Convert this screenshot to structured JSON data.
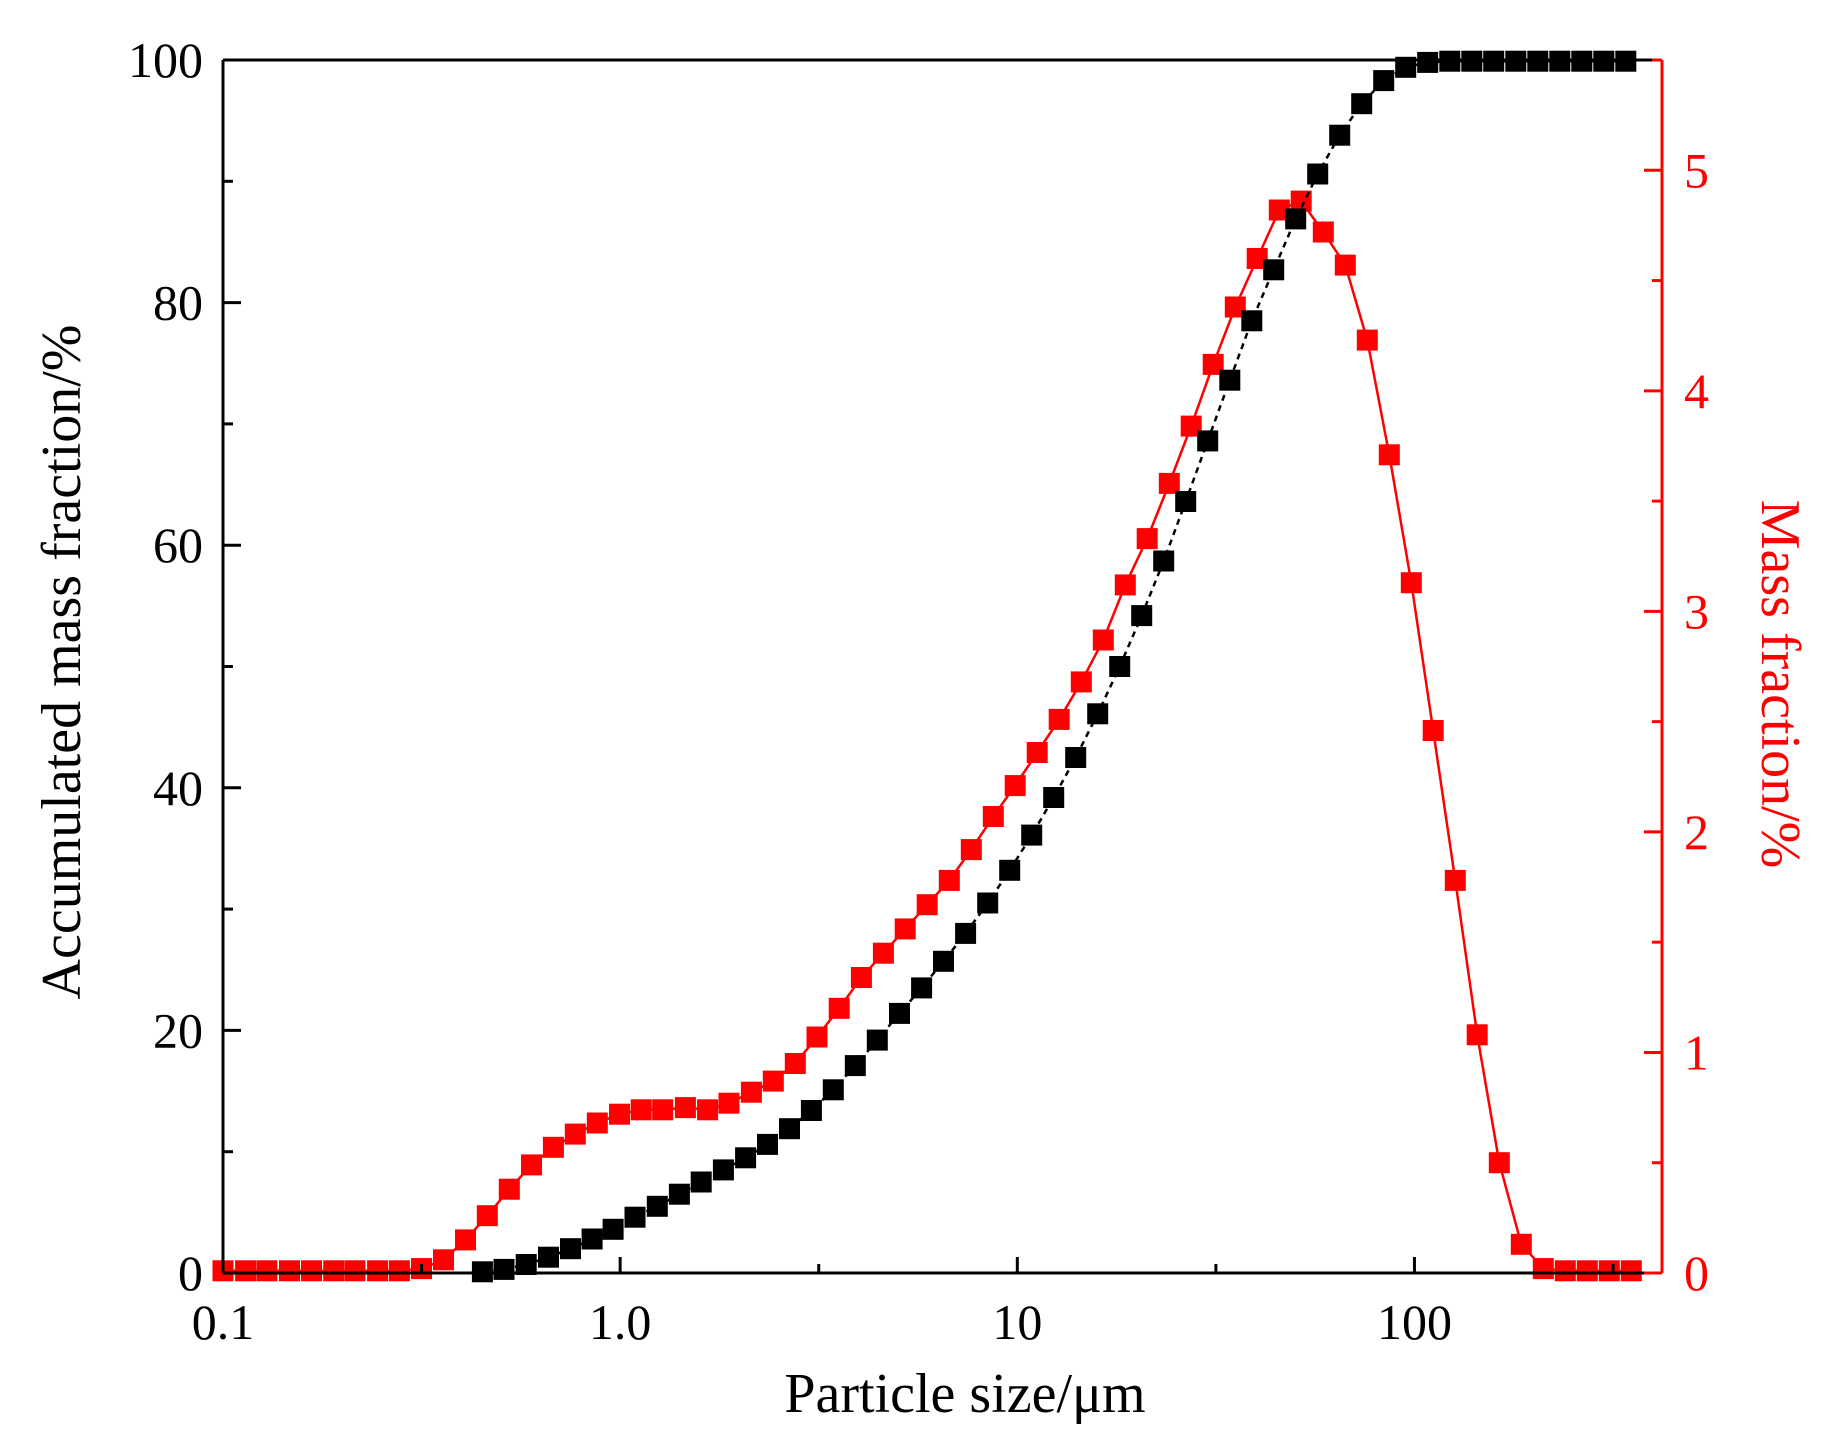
{
  "chart_data": {
    "type": "scatter",
    "title": "",
    "xlabel": "Particle size/μm",
    "ylabel_left": "Accumulated mass fraction/%",
    "ylabel_right": "Mass fraction/%",
    "xscale": "log",
    "xlim": [
      0.1,
      420
    ],
    "ylim_left": [
      0,
      100
    ],
    "ylim_right": [
      0,
      5.5
    ],
    "x_ticks": [
      {
        "value": 0.1,
        "label": "0.1"
      },
      {
        "value": 1,
        "label": "1.0"
      },
      {
        "value": 10,
        "label": "10"
      },
      {
        "value": 100,
        "label": "100"
      }
    ],
    "y_left_ticks": [
      {
        "value": 0,
        "label": "0"
      },
      {
        "value": 20,
        "label": "20"
      },
      {
        "value": 40,
        "label": "40"
      },
      {
        "value": 60,
        "label": "60"
      },
      {
        "value": 80,
        "label": "80"
      },
      {
        "value": 100,
        "label": "100"
      }
    ],
    "y_right_ticks": [
      {
        "value": 0,
        "label": "0"
      },
      {
        "value": 1,
        "label": "1"
      },
      {
        "value": 2,
        "label": "2"
      },
      {
        "value": 3,
        "label": "3"
      },
      {
        "value": 4,
        "label": "4"
      },
      {
        "value": 5,
        "label": "5"
      }
    ],
    "grid": false,
    "legend": "none",
    "series": [
      {
        "name": "Accumulated mass fraction",
        "axis": "left",
        "color": "#000000",
        "x": [
          0.45,
          0.51,
          0.58,
          0.66,
          0.75,
          0.85,
          0.96,
          1.09,
          1.24,
          1.41,
          1.6,
          1.82,
          2.07,
          2.35,
          2.67,
          3.03,
          3.44,
          3.91,
          4.44,
          5.05,
          5.74,
          6.52,
          7.41,
          8.42,
          9.57,
          10.87,
          12.35,
          14.03,
          15.94,
          18.11,
          20.57,
          23.37,
          26.55,
          30.16,
          34.27,
          38.93,
          44.22,
          50.24,
          57.07,
          64.84,
          73.66,
          83.68,
          95.06,
          108,
          122.7,
          139.4,
          158.3,
          179.9,
          204.4,
          232.2,
          263.8,
          299.7,
          340.5
        ],
        "values": [
          0.1,
          0.3,
          0.7,
          1.3,
          2.0,
          2.8,
          3.6,
          4.6,
          5.5,
          6.5,
          7.5,
          8.5,
          9.5,
          10.6,
          11.9,
          13.4,
          15.1,
          17.1,
          19.2,
          21.4,
          23.5,
          25.7,
          28.0,
          30.5,
          33.2,
          36.1,
          39.2,
          42.5,
          46.1,
          50.0,
          54.2,
          58.7,
          63.6,
          68.6,
          73.6,
          78.5,
          82.7,
          86.9,
          90.6,
          93.8,
          96.4,
          98.3,
          99.4,
          99.8,
          99.9,
          99.9,
          99.9,
          99.9,
          99.9,
          99.9,
          99.9,
          99.9,
          99.9
        ]
      },
      {
        "name": "Mass fraction",
        "axis": "right",
        "color": "#ff0000",
        "x": [
          0.1,
          0.114,
          0.129,
          0.147,
          0.167,
          0.19,
          0.215,
          0.245,
          0.278,
          0.316,
          0.359,
          0.408,
          0.463,
          0.526,
          0.598,
          0.679,
          0.771,
          0.876,
          0.996,
          1.13,
          1.28,
          1.46,
          1.66,
          1.88,
          2.14,
          2.43,
          2.76,
          3.13,
          3.56,
          4.05,
          4.6,
          5.22,
          5.93,
          6.74,
          7.66,
          8.7,
          9.88,
          11.22,
          12.75,
          14.49,
          16.46,
          18.7,
          21.24,
          24.13,
          27.41,
          31.14,
          35.38,
          40.19,
          45.66,
          51.87,
          58.93,
          66.95,
          76.06,
          86.41,
          98.17,
          111.5,
          126.7,
          143.9,
          163.5,
          185.8,
          211.1,
          239.8,
          272.4,
          309.5,
          351.6
        ],
        "values": [
          0.01,
          0.01,
          0.01,
          0.01,
          0.01,
          0.01,
          0.01,
          0.01,
          0.01,
          0.02,
          0.06,
          0.15,
          0.26,
          0.38,
          0.49,
          0.57,
          0.63,
          0.68,
          0.72,
          0.74,
          0.74,
          0.75,
          0.74,
          0.77,
          0.82,
          0.87,
          0.95,
          1.07,
          1.2,
          1.34,
          1.45,
          1.56,
          1.67,
          1.78,
          1.92,
          2.07,
          2.21,
          2.36,
          2.51,
          2.68,
          2.87,
          3.12,
          3.33,
          3.58,
          3.84,
          4.12,
          4.38,
          4.6,
          4.82,
          4.86,
          4.72,
          4.57,
          4.23,
          3.71,
          3.13,
          2.46,
          1.78,
          1.08,
          0.5,
          0.13,
          0.02,
          0.01,
          0.01,
          0.01,
          0.01
        ]
      }
    ]
  }
}
